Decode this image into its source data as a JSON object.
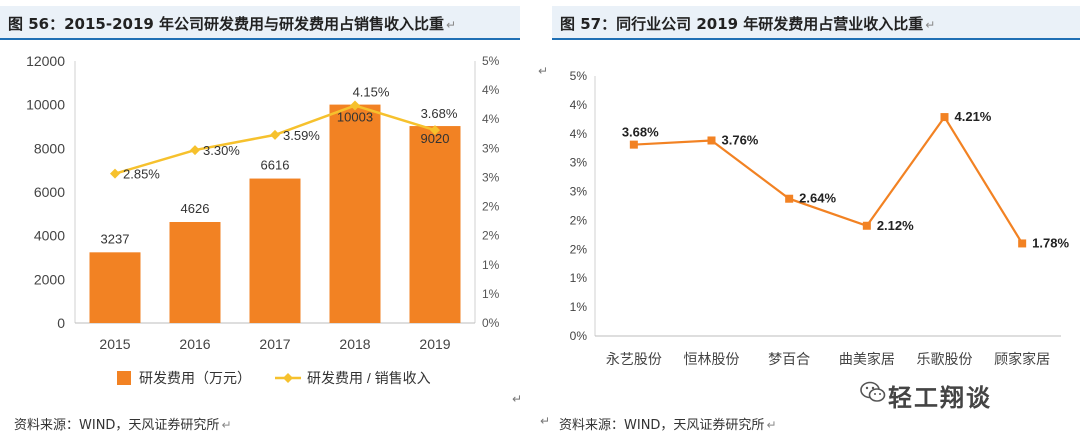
{
  "left_panel": {
    "title": "图 56：2015-2019 年公司研发费用与研发费用占销售收入比重",
    "source": "资料来源：WIND，天风证券研究所"
  },
  "right_panel": {
    "title": "图 57：同行业公司 2019 年研发费用占营业收入比重",
    "source": "资料来源：WIND，天风证券研究所"
  },
  "watermark": "轻工翔谈",
  "colors": {
    "bar": "#f28223",
    "line_left": "#f6c12d",
    "line_right": "#f28223",
    "title_bg": "#eaf1f8",
    "title_border": "#1f6fb4"
  },
  "chart_data": [
    {
      "type": "bar",
      "categories": [
        "2015",
        "2016",
        "2017",
        "2018",
        "2019"
      ],
      "series": [
        {
          "name": "研发费用（万元）",
          "type": "bar",
          "axis": "left",
          "values": [
            3237,
            4626,
            6616,
            10003,
            9020
          ],
          "labels": [
            "3237",
            "4626",
            "6616",
            "10003",
            "9020"
          ]
        },
        {
          "name": "研发费用 / 销售收入",
          "type": "line",
          "axis": "right",
          "values": [
            2.85,
            3.3,
            3.59,
            4.15,
            3.68
          ],
          "labels": [
            "2.85%",
            "3.30%",
            "3.59%",
            "4.15%",
            "3.68%"
          ]
        }
      ],
      "ylim": [
        0,
        12000
      ],
      "yticks": [
        "0",
        "2000",
        "4000",
        "6000",
        "8000",
        "10000",
        "12000"
      ],
      "y2lim": [
        0,
        5
      ],
      "y2ticks": [
        "0%",
        "1%",
        "1%",
        "2%",
        "2%",
        "3%",
        "3%",
        "4%",
        "4%",
        "5%"
      ],
      "legend": "bottom",
      "grid": false
    },
    {
      "type": "line",
      "categories": [
        "永艺股份",
        "恒林股份",
        "梦百合",
        "曲美家居",
        "乐歌股份",
        "顾家家居"
      ],
      "series": [
        {
          "values": [
            3.68,
            3.76,
            2.64,
            2.12,
            4.21,
            1.78
          ],
          "labels": [
            "3.68%",
            "3.76%",
            "2.64%",
            "2.12%",
            "4.21%",
            "1.78%"
          ]
        }
      ],
      "ylim": [
        0,
        5
      ],
      "yticks": [
        "0%",
        "1%",
        "1%",
        "2%",
        "2%",
        "3%",
        "3%",
        "4%",
        "4%",
        "5%"
      ],
      "grid": false
    }
  ]
}
